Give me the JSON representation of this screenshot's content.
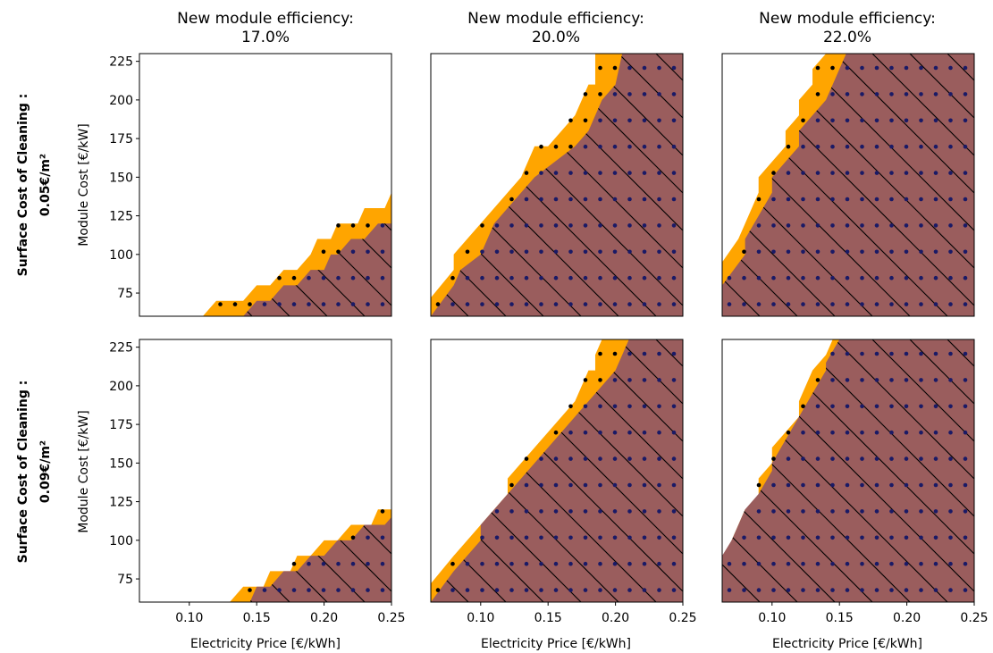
{
  "colors": {
    "orange": "#ffa500",
    "brown": "#9a5d5d",
    "hatch": "#000000",
    "dot_orange": "#000000",
    "dot_brown": "#1a1a66"
  },
  "figure": {
    "column_titles": [
      {
        "line1": "New module efficiency:",
        "line2": "17.0%"
      },
      {
        "line1": "New module efficiency:",
        "line2": "20.0%"
      },
      {
        "line1": "New module efficiency:",
        "line2": "22.0%"
      }
    ],
    "row_labels": [
      {
        "line1": "Surface Cost of Cleaning :",
        "line2": "0.05€/m²"
      },
      {
        "line1": "Surface Cost of Cleaning :",
        "line2": "0.09€/m²"
      }
    ],
    "xlabel": "Electricity Price [€/kWh]",
    "ylabel": "Module Cost [€/kW]"
  },
  "chart_data": {
    "type": "area",
    "xlim": [
      0.063,
      0.25
    ],
    "ylim": [
      60,
      230
    ],
    "xticks": [
      "0.10",
      "0.15",
      "0.20",
      "0.25"
    ],
    "yticks": [
      "75",
      "100",
      "125",
      "150",
      "175",
      "200",
      "225"
    ],
    "xtick_values": [
      0.1,
      0.15,
      0.2,
      0.25
    ],
    "ytick_values": [
      75,
      100,
      125,
      150,
      175,
      200,
      225
    ],
    "panels": [
      {
        "row": 0,
        "col": 0,
        "orange_boundary": [
          [
            0.11,
            60
          ],
          [
            0.12,
            70
          ],
          [
            0.14,
            70
          ],
          [
            0.15,
            80
          ],
          [
            0.16,
            80
          ],
          [
            0.17,
            90
          ],
          [
            0.18,
            90
          ],
          [
            0.19,
            100
          ],
          [
            0.195,
            110
          ],
          [
            0.205,
            110
          ],
          [
            0.21,
            120
          ],
          [
            0.225,
            120
          ],
          [
            0.23,
            130
          ],
          [
            0.245,
            130
          ],
          [
            0.25,
            140
          ]
        ],
        "brown_boundary": [
          [
            0.14,
            60
          ],
          [
            0.15,
            70
          ],
          [
            0.16,
            70
          ],
          [
            0.17,
            80
          ],
          [
            0.18,
            80
          ],
          [
            0.19,
            90
          ],
          [
            0.2,
            90
          ],
          [
            0.205,
            100
          ],
          [
            0.21,
            100
          ],
          [
            0.22,
            110
          ],
          [
            0.23,
            110
          ],
          [
            0.24,
            120
          ],
          [
            0.25,
            120
          ]
        ]
      },
      {
        "row": 0,
        "col": 1,
        "orange_boundary": [
          [
            0.063,
            72
          ],
          [
            0.08,
            90
          ],
          [
            0.08,
            100
          ],
          [
            0.09,
            110
          ],
          [
            0.12,
            140
          ],
          [
            0.13,
            150
          ],
          [
            0.14,
            170
          ],
          [
            0.15,
            170
          ],
          [
            0.17,
            190
          ],
          [
            0.18,
            210
          ],
          [
            0.185,
            210
          ],
          [
            0.185,
            230
          ]
        ],
        "brown_boundary": [
          [
            0.063,
            60
          ],
          [
            0.08,
            80
          ],
          [
            0.085,
            90
          ],
          [
            0.1,
            100
          ],
          [
            0.11,
            120
          ],
          [
            0.13,
            140
          ],
          [
            0.14,
            150
          ],
          [
            0.17,
            170
          ],
          [
            0.18,
            180
          ],
          [
            0.19,
            200
          ],
          [
            0.2,
            210
          ],
          [
            0.205,
            230
          ]
        ]
      },
      {
        "row": 0,
        "col": 2,
        "orange_boundary": [
          [
            0.063,
            95
          ],
          [
            0.075,
            110
          ],
          [
            0.08,
            120
          ],
          [
            0.09,
            140
          ],
          [
            0.09,
            150
          ],
          [
            0.1,
            160
          ],
          [
            0.11,
            170
          ],
          [
            0.11,
            180
          ],
          [
            0.12,
            190
          ],
          [
            0.12,
            200
          ],
          [
            0.13,
            210
          ],
          [
            0.13,
            220
          ],
          [
            0.14,
            230
          ]
        ],
        "brown_boundary": [
          [
            0.063,
            80
          ],
          [
            0.08,
            100
          ],
          [
            0.08,
            110
          ],
          [
            0.09,
            125
          ],
          [
            0.1,
            140
          ],
          [
            0.1,
            150
          ],
          [
            0.12,
            170
          ],
          [
            0.12,
            180
          ],
          [
            0.13,
            190
          ],
          [
            0.14,
            200
          ],
          [
            0.145,
            210
          ],
          [
            0.155,
            230
          ]
        ]
      },
      {
        "row": 1,
        "col": 0,
        "orange_boundary": [
          [
            0.13,
            60
          ],
          [
            0.14,
            70
          ],
          [
            0.155,
            70
          ],
          [
            0.16,
            80
          ],
          [
            0.175,
            80
          ],
          [
            0.18,
            90
          ],
          [
            0.19,
            90
          ],
          [
            0.2,
            100
          ],
          [
            0.21,
            100
          ],
          [
            0.22,
            110
          ],
          [
            0.235,
            110
          ],
          [
            0.24,
            120
          ],
          [
            0.25,
            120
          ]
        ],
        "brown_boundary": [
          [
            0.145,
            60
          ],
          [
            0.15,
            70
          ],
          [
            0.16,
            70
          ],
          [
            0.17,
            80
          ],
          [
            0.18,
            80
          ],
          [
            0.19,
            90
          ],
          [
            0.2,
            90
          ],
          [
            0.21,
            100
          ],
          [
            0.22,
            100
          ],
          [
            0.23,
            110
          ],
          [
            0.245,
            110
          ],
          [
            0.25,
            115
          ]
        ]
      },
      {
        "row": 1,
        "col": 1,
        "orange_boundary": [
          [
            0.063,
            72
          ],
          [
            0.08,
            90
          ],
          [
            0.09,
            100
          ],
          [
            0.12,
            130
          ],
          [
            0.12,
            140
          ],
          [
            0.14,
            160
          ],
          [
            0.15,
            170
          ],
          [
            0.17,
            190
          ],
          [
            0.18,
            210
          ],
          [
            0.185,
            210
          ],
          [
            0.185,
            220
          ],
          [
            0.19,
            230
          ]
        ],
        "brown_boundary": [
          [
            0.063,
            60
          ],
          [
            0.08,
            80
          ],
          [
            0.09,
            90
          ],
          [
            0.1,
            100
          ],
          [
            0.1,
            110
          ],
          [
            0.12,
            130
          ],
          [
            0.14,
            150
          ],
          [
            0.16,
            170
          ],
          [
            0.18,
            190
          ],
          [
            0.19,
            200
          ],
          [
            0.2,
            210
          ],
          [
            0.21,
            230
          ]
        ]
      },
      {
        "row": 1,
        "col": 2,
        "orange_boundary": [
          [
            0.07,
            100
          ],
          [
            0.08,
            120
          ],
          [
            0.085,
            120
          ],
          [
            0.09,
            130
          ],
          [
            0.09,
            140
          ],
          [
            0.1,
            150
          ],
          [
            0.1,
            160
          ],
          [
            0.11,
            170
          ],
          [
            0.12,
            180
          ],
          [
            0.12,
            190
          ],
          [
            0.13,
            210
          ],
          [
            0.14,
            220
          ],
          [
            0.145,
            230
          ]
        ],
        "brown_boundary": [
          [
            0.063,
            90
          ],
          [
            0.07,
            100
          ],
          [
            0.08,
            120
          ],
          [
            0.09,
            130
          ],
          [
            0.1,
            145
          ],
          [
            0.1,
            150
          ],
          [
            0.11,
            165
          ],
          [
            0.12,
            180
          ],
          [
            0.13,
            195
          ],
          [
            0.14,
            210
          ],
          [
            0.14,
            215
          ],
          [
            0.15,
            230
          ]
        ]
      }
    ]
  }
}
